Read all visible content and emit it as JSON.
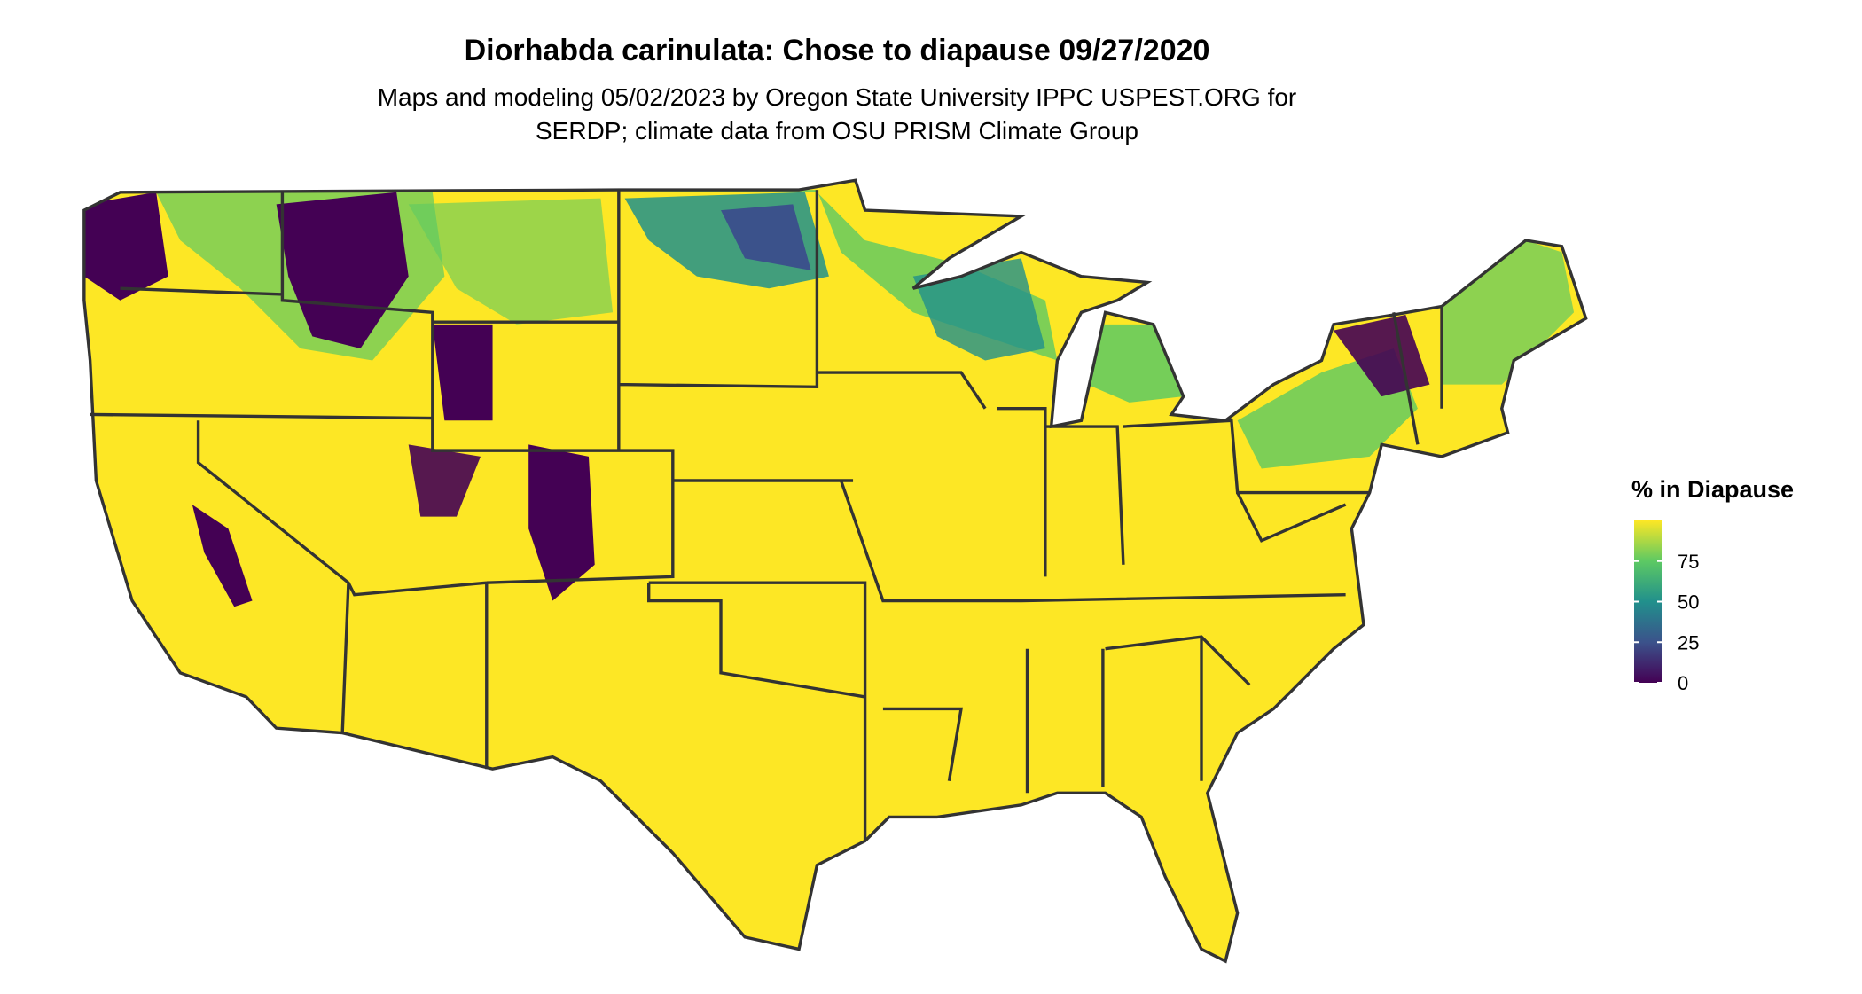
{
  "title": "Diorhabda carinulata: Chose to diapause 09/27/2020",
  "subtitle": [
    "Maps and modeling 05/02/2023 by Oregon State University IPPC USPEST.ORG for",
    "SERDP; climate data from OSU PRISM Climate Group"
  ],
  "legend": {
    "title": "% in Diapause",
    "lim": [
      0,
      100
    ],
    "ticks": [
      0,
      25,
      50,
      75
    ],
    "colors": [
      "#440154",
      "#3b528b",
      "#21908c",
      "#5dc963",
      "#fde725"
    ]
  }
}
